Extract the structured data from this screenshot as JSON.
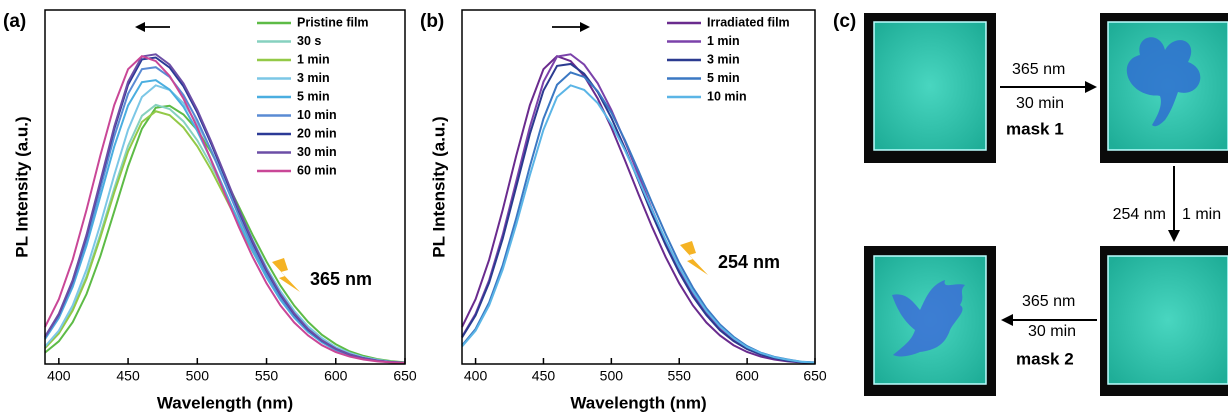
{
  "chart_data": [
    {
      "type": "line",
      "title": "(a)",
      "annotation": "365 nm",
      "x_label": "Wavelength (nm)",
      "y_label": "PL Intensity (a.u.)",
      "x": [
        390,
        400,
        410,
        420,
        430,
        440,
        450,
        460,
        470,
        480,
        490,
        500,
        510,
        520,
        530,
        540,
        550,
        560,
        570,
        580,
        590,
        600,
        610,
        620,
        630,
        640,
        650
      ],
      "xlim": [
        390,
        650
      ],
      "xticks": [
        400,
        450,
        500,
        550,
        600,
        650
      ],
      "ylim": [
        0,
        1
      ],
      "legend": "upper right",
      "series": [
        {
          "name": "Pristine film",
          "color": "#5dbb46",
          "values": [
            0.035,
            0.07,
            0.129,
            0.216,
            0.333,
            0.471,
            0.61,
            0.726,
            0.791,
            0.797,
            0.77,
            0.722,
            0.654,
            0.573,
            0.486,
            0.398,
            0.316,
            0.242,
            0.18,
            0.13,
            0.09,
            0.061,
            0.039,
            0.025,
            0.015,
            0.009,
            0.005
          ]
        },
        {
          "name": "30 s",
          "color": "#86d1bf",
          "values": [
            0.05,
            0.096,
            0.169,
            0.271,
            0.401,
            0.542,
            0.673,
            0.766,
            0.8,
            0.787,
            0.749,
            0.69,
            0.614,
            0.53,
            0.442,
            0.356,
            0.278,
            0.21,
            0.153,
            0.108,
            0.074,
            0.049,
            0.031,
            0.019,
            0.012,
            0.006,
            0.004
          ]
        },
        {
          "name": "1 min",
          "color": "#93c947",
          "values": [
            0.049,
            0.094,
            0.165,
            0.264,
            0.391,
            0.529,
            0.656,
            0.747,
            0.78,
            0.768,
            0.73,
            0.672,
            0.599,
            0.516,
            0.431,
            0.347,
            0.271,
            0.204,
            0.149,
            0.105,
            0.073,
            0.048,
            0.03,
            0.019,
            0.012,
            0.006,
            0.004
          ]
        },
        {
          "name": "3 min",
          "color": "#7cc7e6",
          "values": [
            0.054,
            0.103,
            0.181,
            0.292,
            0.431,
            0.583,
            0.723,
            0.824,
            0.86,
            0.846,
            0.805,
            0.741,
            0.66,
            0.569,
            0.475,
            0.383,
            0.298,
            0.225,
            0.164,
            0.116,
            0.08,
            0.052,
            0.034,
            0.021,
            0.013,
            0.007,
            0.004
          ]
        },
        {
          "name": "5 min",
          "color": "#4aaee0",
          "values": [
            0.077,
            0.142,
            0.238,
            0.366,
            0.518,
            0.671,
            0.798,
            0.87,
            0.876,
            0.847,
            0.794,
            0.719,
            0.63,
            0.534,
            0.437,
            0.348,
            0.267,
            0.198,
            0.143,
            0.099,
            0.067,
            0.043,
            0.027,
            0.017,
            0.01,
            0.005,
            0.004
          ]
        },
        {
          "name": "10 min",
          "color": "#5a8bd4",
          "values": [
            0.081,
            0.148,
            0.248,
            0.383,
            0.542,
            0.702,
            0.834,
            0.91,
            0.916,
            0.886,
            0.83,
            0.752,
            0.659,
            0.558,
            0.457,
            0.363,
            0.279,
            0.207,
            0.149,
            0.103,
            0.07,
            0.045,
            0.029,
            0.017,
            0.01,
            0.006,
            0.004
          ]
        },
        {
          "name": "20 min",
          "color": "#2b3a96",
          "values": [
            0.084,
            0.153,
            0.257,
            0.395,
            0.56,
            0.725,
            0.862,
            0.94,
            0.946,
            0.915,
            0.857,
            0.776,
            0.68,
            0.577,
            0.472,
            0.375,
            0.288,
            0.214,
            0.154,
            0.106,
            0.072,
            0.047,
            0.029,
            0.018,
            0.01,
            0.006,
            0.004
          ]
        },
        {
          "name": "30 min",
          "color": "#6c4ea6",
          "values": [
            0.084,
            0.155,
            0.259,
            0.399,
            0.565,
            0.732,
            0.871,
            0.949,
            0.956,
            0.924,
            0.866,
            0.784,
            0.687,
            0.583,
            0.477,
            0.379,
            0.291,
            0.216,
            0.156,
            0.108,
            0.073,
            0.047,
            0.03,
            0.018,
            0.011,
            0.006,
            0.004
          ]
        },
        {
          "name": "60 min",
          "color": "#c94797",
          "values": [
            0.114,
            0.2,
            0.322,
            0.476,
            0.644,
            0.799,
            0.91,
            0.95,
            0.935,
            0.889,
            0.819,
            0.73,
            0.629,
            0.524,
            0.423,
            0.33,
            0.249,
            0.181,
            0.128,
            0.088,
            0.058,
            0.037,
            0.023,
            0.014,
            0.008,
            0.005,
            0.003
          ]
        }
      ]
    },
    {
      "type": "line",
      "title": "(b)",
      "annotation": "254 nm",
      "x_label": "Wavelength (nm)",
      "y_label": "PL Intensity (a.u.)",
      "x": [
        390,
        400,
        410,
        420,
        430,
        440,
        450,
        460,
        470,
        480,
        490,
        500,
        510,
        520,
        530,
        540,
        550,
        560,
        570,
        580,
        590,
        600,
        610,
        620,
        630,
        640,
        650
      ],
      "xlim": [
        390,
        650
      ],
      "xticks": [
        400,
        450,
        500,
        550,
        600,
        650
      ],
      "ylim": [
        0,
        1
      ],
      "legend": "upper right",
      "series": [
        {
          "name": "Irradiated film",
          "color": "#6a2b8e",
          "values": [
            0.114,
            0.2,
            0.322,
            0.476,
            0.644,
            0.799,
            0.91,
            0.95,
            0.935,
            0.889,
            0.819,
            0.73,
            0.629,
            0.524,
            0.423,
            0.33,
            0.249,
            0.181,
            0.128,
            0.088,
            0.058,
            0.037,
            0.023,
            0.014,
            0.008,
            0.005,
            0.003
          ]
        },
        {
          "name": "1 min",
          "color": "#7b42aa",
          "values": [
            0.084,
            0.155,
            0.259,
            0.399,
            0.565,
            0.732,
            0.871,
            0.949,
            0.956,
            0.924,
            0.866,
            0.784,
            0.687,
            0.583,
            0.477,
            0.379,
            0.291,
            0.216,
            0.156,
            0.108,
            0.073,
            0.047,
            0.03,
            0.018,
            0.011,
            0.006,
            0.004
          ]
        },
        {
          "name": "3 min",
          "color": "#2b3b90",
          "values": [
            0.082,
            0.15,
            0.251,
            0.387,
            0.548,
            0.71,
            0.844,
            0.92,
            0.926,
            0.896,
            0.839,
            0.76,
            0.666,
            0.565,
            0.462,
            0.367,
            0.282,
            0.209,
            0.151,
            0.104,
            0.071,
            0.046,
            0.029,
            0.018,
            0.01,
            0.006,
            0.004
          ]
        },
        {
          "name": "5 min",
          "color": "#3b78c3",
          "values": [
            0.057,
            0.108,
            0.19,
            0.305,
            0.451,
            0.61,
            0.757,
            0.862,
            0.9,
            0.886,
            0.842,
            0.776,
            0.691,
            0.596,
            0.497,
            0.401,
            0.312,
            0.236,
            0.172,
            0.122,
            0.084,
            0.055,
            0.035,
            0.022,
            0.014,
            0.007,
            0.005
          ]
        },
        {
          "name": "10 min",
          "color": "#5bb5e6",
          "values": [
            0.054,
            0.103,
            0.181,
            0.292,
            0.431,
            0.583,
            0.723,
            0.824,
            0.86,
            0.846,
            0.805,
            0.741,
            0.66,
            0.569,
            0.475,
            0.383,
            0.298,
            0.225,
            0.164,
            0.116,
            0.08,
            0.052,
            0.034,
            0.021,
            0.013,
            0.007,
            0.004
          ]
        }
      ]
    }
  ],
  "panel_c": {
    "label": "(c)",
    "steps": [
      {
        "wavelength": "365 nm",
        "time": "30 min",
        "mask": "mask 1"
      },
      {
        "wavelength": "254 nm",
        "time": "1 min"
      },
      {
        "wavelength": "365 nm",
        "time": "30 min",
        "mask": "mask 2"
      }
    ]
  }
}
